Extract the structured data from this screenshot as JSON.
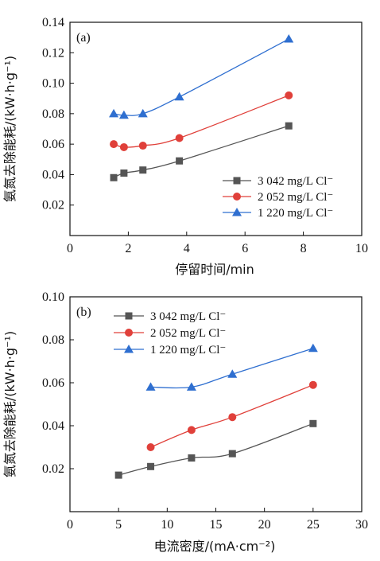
{
  "chart_data": [
    {
      "type": "line",
      "panel_label": "(a)",
      "xlabel": "停留时间/min",
      "ylabel": "氨氮去除能耗/(kW·h·g⁻¹)",
      "xlim": [
        0,
        10
      ],
      "ylim": [
        0,
        0.14
      ],
      "x_ticks": [
        "0",
        "2",
        "4",
        "6",
        "8",
        "10"
      ],
      "y_ticks": [
        "0.02",
        "0.04",
        "0.06",
        "0.08",
        "0.10",
        "0.12",
        "0.14"
      ],
      "grid": false,
      "legend_position": "lower-right",
      "series": [
        {
          "name": "3 042 mg/L Cl⁻",
          "color": "#555555",
          "marker": "square",
          "x": [
            1.5,
            1.85,
            2.5,
            3.75,
            7.5
          ],
          "y": [
            0.038,
            0.041,
            0.043,
            0.049,
            0.072
          ]
        },
        {
          "name": "2 052 mg/L Cl⁻",
          "color": "#e0403a",
          "marker": "circle",
          "x": [
            1.5,
            1.85,
            2.5,
            3.75,
            7.5
          ],
          "y": [
            0.06,
            0.058,
            0.059,
            0.064,
            0.092
          ]
        },
        {
          "name": "1 220 mg/L Cl⁻",
          "color": "#2f6fd0",
          "marker": "triangle",
          "x": [
            1.5,
            1.85,
            2.5,
            3.75,
            7.5
          ],
          "y": [
            0.08,
            0.079,
            0.08,
            0.091,
            0.129
          ]
        }
      ]
    },
    {
      "type": "line",
      "panel_label": "(b)",
      "xlabel": "电流密度/(mA·cm⁻²)",
      "ylabel": "氨氮去除能耗/(kW·h·g⁻¹)",
      "xlim": [
        0,
        30
      ],
      "ylim": [
        0,
        0.1
      ],
      "x_ticks": [
        "0",
        "5",
        "10",
        "15",
        "20",
        "25",
        "30"
      ],
      "y_ticks": [
        "0.02",
        "0.04",
        "0.06",
        "0.08",
        "0.10"
      ],
      "grid": false,
      "legend_position": "top-left",
      "series": [
        {
          "name": "3 042 mg/L Cl⁻",
          "color": "#555555",
          "marker": "square",
          "x": [
            5,
            8.3,
            12.5,
            16.7,
            25
          ],
          "y": [
            0.017,
            0.021,
            0.025,
            0.027,
            0.041
          ]
        },
        {
          "name": "2 052 mg/L Cl⁻",
          "color": "#e0403a",
          "marker": "circle",
          "x": [
            8.3,
            12.5,
            16.7,
            25
          ],
          "y": [
            0.03,
            0.038,
            0.044,
            0.059
          ]
        },
        {
          "name": "1 220 mg/L Cl⁻",
          "color": "#2f6fd0",
          "marker": "triangle",
          "x": [
            8.3,
            12.5,
            16.7,
            25
          ],
          "y": [
            0.058,
            0.058,
            0.064,
            0.076
          ]
        }
      ]
    }
  ]
}
